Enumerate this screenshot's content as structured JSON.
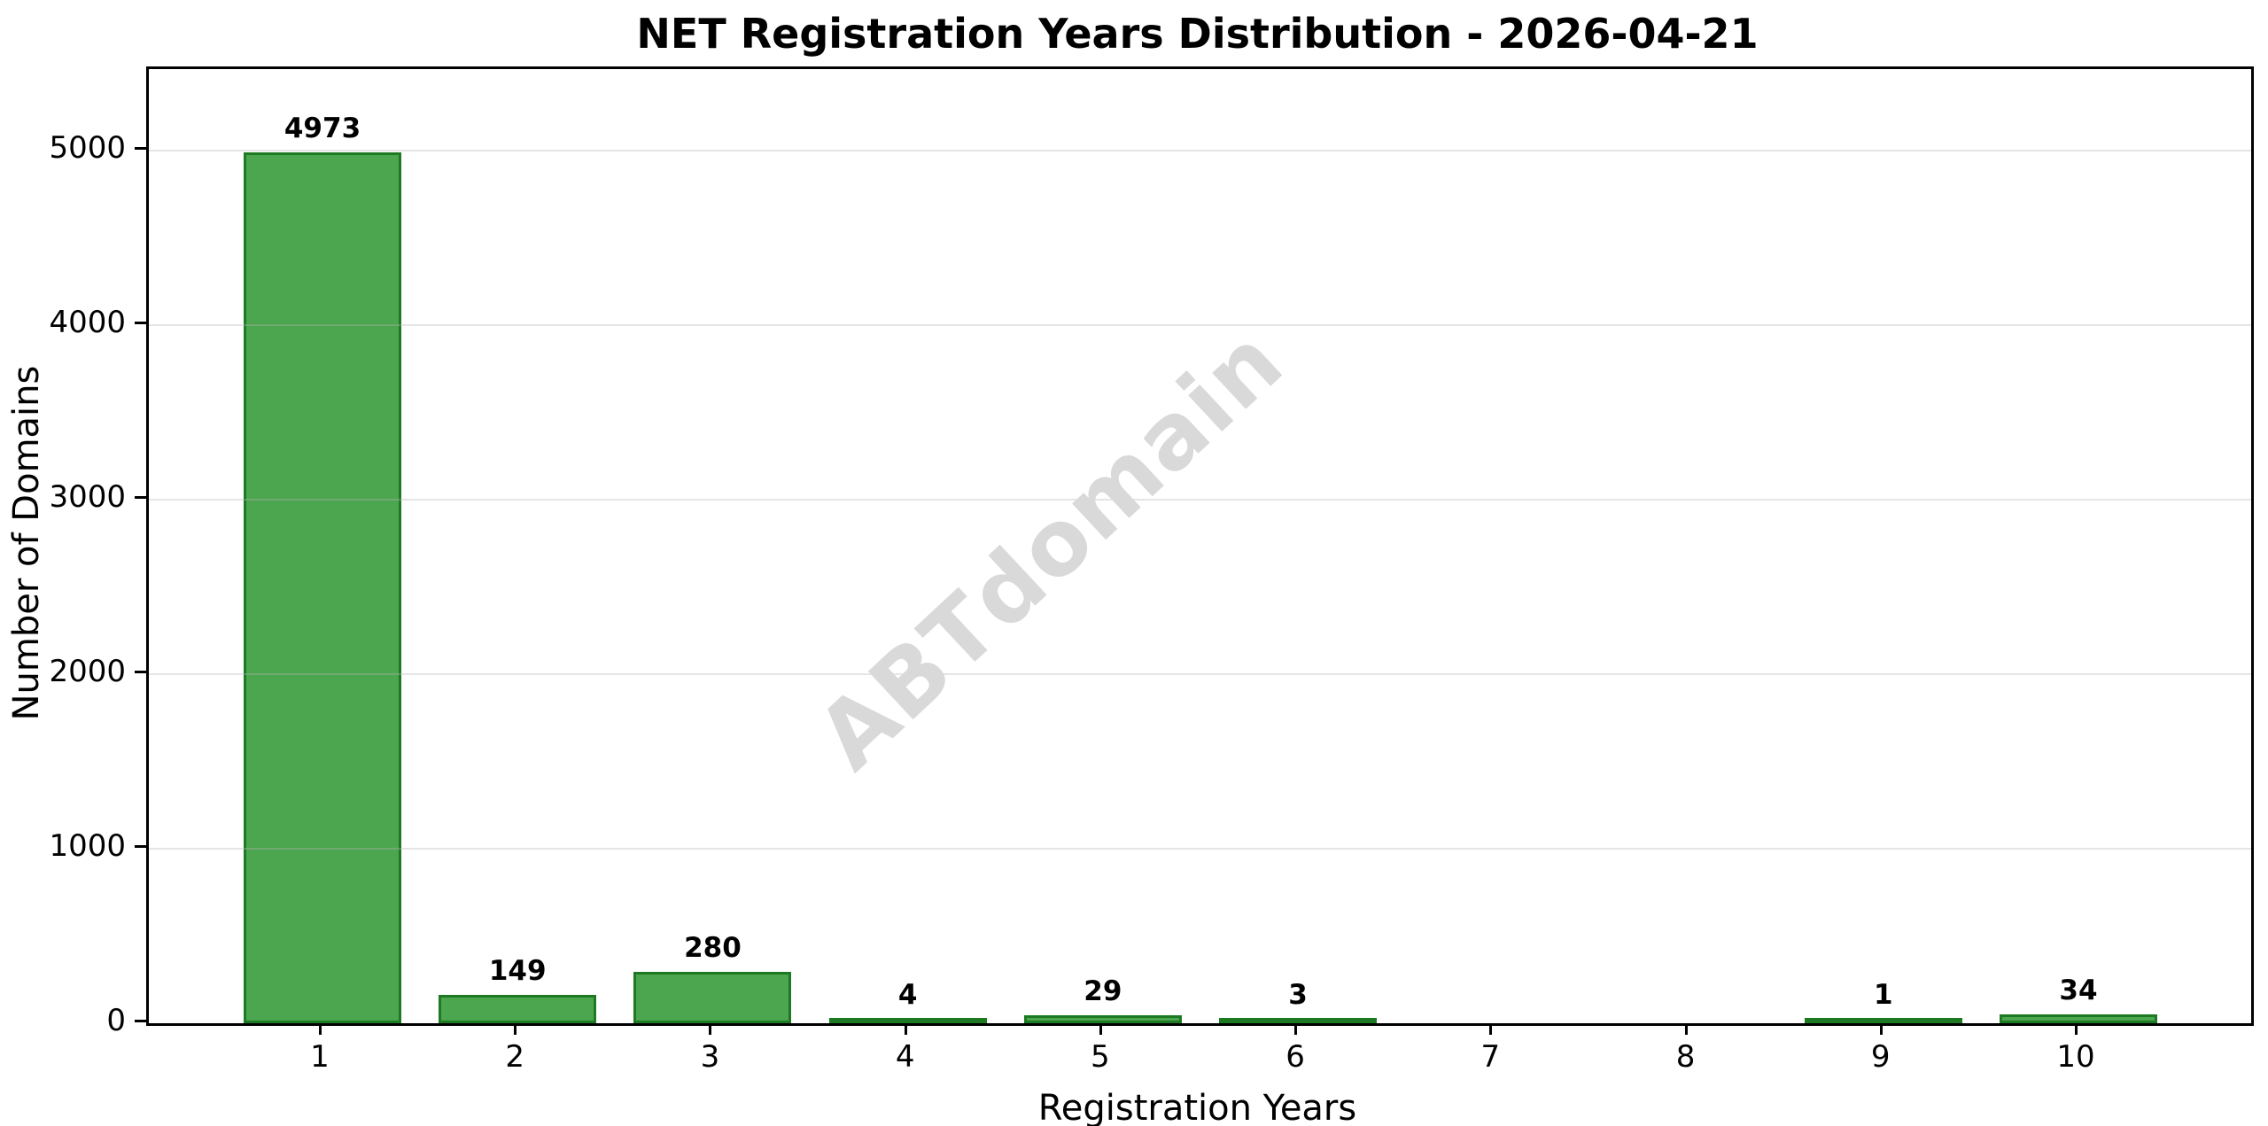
{
  "chart_data": {
    "type": "bar",
    "title": "NET Registration Years Distribution - 2026-04-21",
    "xlabel": "Registration Years",
    "ylabel": "Number of Domains",
    "categories": [
      "1",
      "2",
      "3",
      "4",
      "5",
      "6",
      "7",
      "8",
      "9",
      "10"
    ],
    "values": [
      4973,
      149,
      280,
      4,
      29,
      3,
      0,
      0,
      1,
      34
    ],
    "bar_labels": [
      "4973",
      "149",
      "280",
      "4",
      "29",
      "3",
      "",
      "",
      "1",
      "34"
    ],
    "yticks": [
      0,
      1000,
      2000,
      3000,
      4000,
      5000
    ],
    "ylim": [
      0,
      5467
    ],
    "grid": "horizontal",
    "legend_position": "none",
    "watermark": "ABTdomain",
    "colors": {
      "bar_fill": "#4CA54F",
      "bar_edge": "#1E7A22",
      "gridline": "rgba(180,180,180,0.35)",
      "watermark": "#d9d9d9",
      "axis": "#000000",
      "text": "#000000",
      "background": "#ffffff"
    }
  }
}
